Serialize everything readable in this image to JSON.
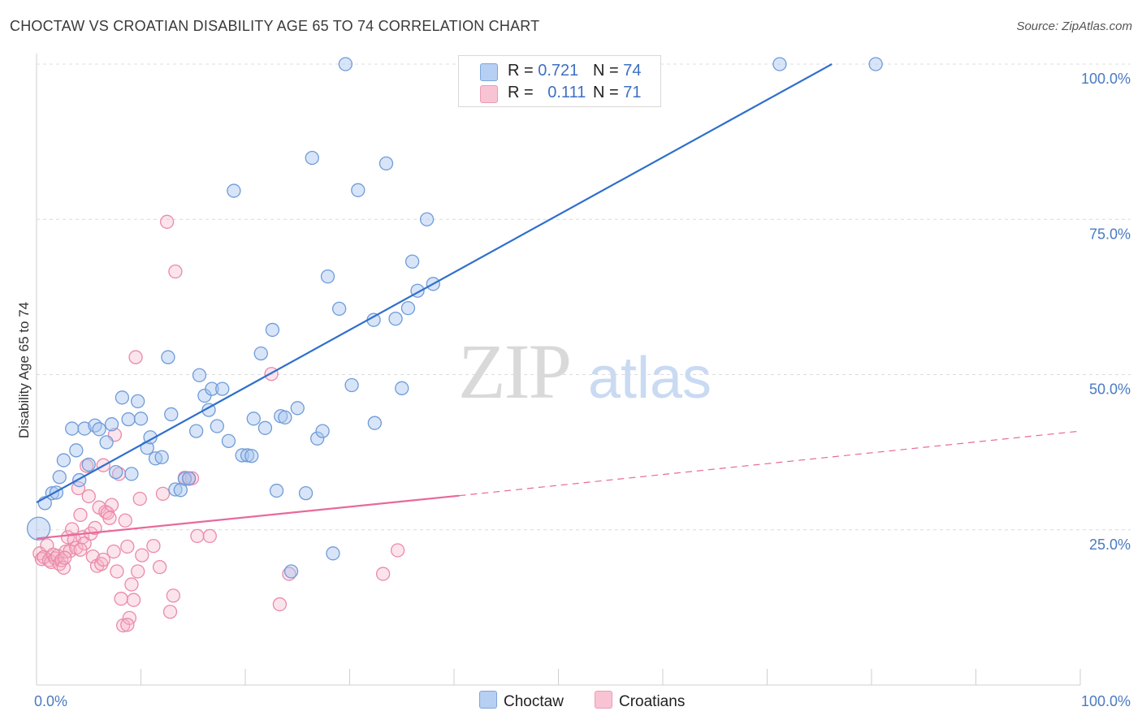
{
  "title": "CHOCTAW VS CROATIAN DISABILITY AGE 65 TO 74 CORRELATION CHART",
  "source": "Source: ZipAtlas.com",
  "legend": {
    "series": [
      {
        "r_label": "R =",
        "r_value": "0.721",
        "n_label": "N =",
        "n_value": "74"
      },
      {
        "r_label": "R =",
        "r_value": "0.111",
        "n_label": "N =",
        "n_value": "71"
      }
    ]
  },
  "bottom_legend": {
    "choctaw": "Choctaw",
    "croatians": "Croatians"
  },
  "colors": {
    "choctaw_fill": "#a9c6ef",
    "choctaw_stroke": "#6f9bd8",
    "choctaw_line": "#2f6fcc",
    "croatian_fill": "#f5b3c8",
    "croatian_stroke": "#ea8aa8",
    "croatian_line": "#e8699a",
    "tick_text": "#4a7ac2",
    "grid": "#dcdcdc"
  },
  "chart_data": {
    "type": "scatter",
    "title": "CHOCTAW VS CROATIAN DISABILITY AGE 65 TO 74 CORRELATION CHART",
    "xlabel": "",
    "ylabel": "Disability Age 65 to 74",
    "xlim": [
      0,
      100
    ],
    "ylim": [
      0,
      100
    ],
    "x_tick_labels": [
      "0.0%",
      "100.0%"
    ],
    "y_ticks": [
      25,
      50,
      75,
      100
    ],
    "y_tick_labels": [
      "25.0%",
      "50.0%",
      "75.0%",
      "100.0%"
    ],
    "grid": true,
    "legend_position": "top-center",
    "watermark": {
      "zip": "ZIP",
      "atlas": "atlas"
    },
    "series": [
      {
        "name": "Choctaw",
        "points": [
          [
            0.2,
            25.2
          ],
          [
            0.8,
            29.3
          ],
          [
            1.5,
            30.9
          ],
          [
            1.9,
            31.0
          ],
          [
            2.2,
            33.5
          ],
          [
            2.6,
            36.2
          ],
          [
            3.4,
            41.3
          ],
          [
            3.8,
            37.8
          ],
          [
            4.1,
            33.0
          ],
          [
            4.6,
            41.3
          ],
          [
            5.0,
            35.5
          ],
          [
            5.6,
            41.8
          ],
          [
            6.0,
            41.2
          ],
          [
            6.7,
            39.1
          ],
          [
            7.2,
            42.0
          ],
          [
            7.6,
            34.3
          ],
          [
            8.2,
            46.3
          ],
          [
            8.8,
            42.8
          ],
          [
            9.1,
            34.0
          ],
          [
            9.7,
            45.7
          ],
          [
            10.0,
            42.9
          ],
          [
            10.6,
            38.2
          ],
          [
            10.9,
            39.9
          ],
          [
            11.4,
            36.5
          ],
          [
            12.0,
            36.7
          ],
          [
            12.6,
            52.8
          ],
          [
            12.9,
            43.6
          ],
          [
            13.3,
            31.5
          ],
          [
            14.2,
            33.2
          ],
          [
            14.6,
            33.3
          ],
          [
            15.3,
            40.9
          ],
          [
            15.6,
            49.9
          ],
          [
            16.1,
            46.6
          ],
          [
            16.5,
            44.3
          ],
          [
            16.8,
            47.7
          ],
          [
            17.3,
            41.7
          ],
          [
            17.8,
            47.7
          ],
          [
            18.4,
            39.3
          ],
          [
            18.9,
            79.6
          ],
          [
            19.7,
            37.0
          ],
          [
            20.2,
            37.0
          ],
          [
            20.6,
            36.9
          ],
          [
            20.8,
            42.9
          ],
          [
            21.5,
            53.4
          ],
          [
            21.9,
            41.4
          ],
          [
            22.6,
            57.2
          ],
          [
            23.0,
            31.3
          ],
          [
            23.4,
            43.3
          ],
          [
            23.8,
            43.1
          ],
          [
            25.0,
            44.6
          ],
          [
            25.8,
            30.9
          ],
          [
            26.4,
            84.9
          ],
          [
            26.9,
            39.7
          ],
          [
            27.4,
            40.9
          ],
          [
            27.9,
            65.8
          ],
          [
            28.4,
            21.2
          ],
          [
            29.0,
            60.6
          ],
          [
            29.6,
            100.0
          ],
          [
            30.2,
            48.3
          ],
          [
            30.8,
            79.7
          ],
          [
            32.3,
            58.8
          ],
          [
            32.4,
            42.2
          ],
          [
            33.5,
            84.0
          ],
          [
            34.4,
            59.0
          ],
          [
            35.0,
            47.8
          ],
          [
            35.6,
            60.7
          ],
          [
            36.0,
            68.2
          ],
          [
            36.5,
            63.5
          ],
          [
            37.4,
            75.0
          ],
          [
            38.0,
            64.6
          ],
          [
            24.4,
            18.3
          ],
          [
            71.2,
            100.0
          ],
          [
            80.4,
            100.0
          ],
          [
            13.8,
            31.4
          ]
        ],
        "trendline": {
          "x": [
            0,
            76.2
          ],
          "y": [
            29.4,
            100.0
          ]
        }
      },
      {
        "name": "Croatians",
        "points": [
          [
            0.3,
            21.2
          ],
          [
            0.5,
            20.3
          ],
          [
            0.7,
            20.6
          ],
          [
            1.0,
            22.5
          ],
          [
            1.2,
            20.1
          ],
          [
            1.4,
            19.8
          ],
          [
            1.6,
            21.0
          ],
          [
            1.8,
            20.4
          ],
          [
            2.0,
            20.8
          ],
          [
            2.2,
            19.5
          ],
          [
            2.4,
            20.1
          ],
          [
            2.6,
            18.9
          ],
          [
            2.8,
            21.5
          ],
          [
            3.0,
            23.8
          ],
          [
            3.2,
            21.6
          ],
          [
            3.4,
            25.1
          ],
          [
            3.6,
            23.4
          ],
          [
            3.8,
            22.1
          ],
          [
            4.0,
            31.7
          ],
          [
            4.2,
            27.4
          ],
          [
            4.4,
            23.8
          ],
          [
            4.6,
            22.8
          ],
          [
            4.8,
            35.3
          ],
          [
            5.0,
            30.4
          ],
          [
            5.2,
            24.4
          ],
          [
            5.4,
            20.7
          ],
          [
            5.6,
            25.3
          ],
          [
            5.8,
            19.2
          ],
          [
            6.0,
            28.6
          ],
          [
            6.2,
            19.5
          ],
          [
            6.4,
            35.4
          ],
          [
            6.6,
            27.9
          ],
          [
            6.8,
            27.7
          ],
          [
            7.0,
            26.9
          ],
          [
            7.2,
            29.0
          ],
          [
            7.4,
            21.5
          ],
          [
            7.5,
            40.3
          ],
          [
            7.7,
            18.3
          ],
          [
            7.9,
            34.0
          ],
          [
            8.1,
            13.9
          ],
          [
            8.3,
            9.6
          ],
          [
            8.5,
            26.5
          ],
          [
            8.7,
            22.3
          ],
          [
            8.9,
            10.8
          ],
          [
            9.1,
            16.2
          ],
          [
            9.3,
            13.7
          ],
          [
            9.5,
            52.8
          ],
          [
            9.7,
            18.3
          ],
          [
            9.9,
            30.0
          ],
          [
            10.1,
            20.9
          ],
          [
            11.8,
            19.0
          ],
          [
            12.1,
            30.8
          ],
          [
            12.5,
            74.6
          ],
          [
            12.8,
            11.8
          ],
          [
            13.1,
            14.4
          ],
          [
            13.3,
            66.6
          ],
          [
            14.2,
            33.4
          ],
          [
            14.6,
            33.2
          ],
          [
            14.9,
            33.3
          ],
          [
            15.4,
            24.0
          ],
          [
            16.6,
            24.0
          ],
          [
            22.5,
            50.1
          ],
          [
            23.3,
            13.0
          ],
          [
            24.2,
            17.9
          ],
          [
            33.2,
            17.9
          ],
          [
            34.6,
            21.7
          ],
          [
            4.2,
            21.8
          ],
          [
            6.4,
            20.2
          ],
          [
            2.7,
            20.5
          ],
          [
            8.7,
            9.7
          ],
          [
            11.2,
            22.4
          ]
        ],
        "trendline": {
          "x": [
            0,
            40.5
          ],
          "y": [
            23.6,
            30.5
          ]
        },
        "trendline_extension": {
          "x": [
            40.5,
            100
          ],
          "y": [
            30.5,
            40.9
          ]
        }
      }
    ]
  }
}
